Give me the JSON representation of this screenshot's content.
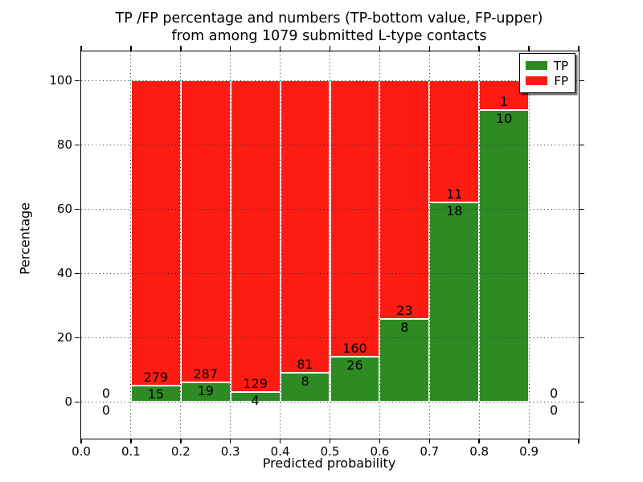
{
  "title": {
    "line1": "TP /FP percentage and numbers (TP-bottom value, FP-upper)",
    "line2": "from among 1079 submitted L-type contacts"
  },
  "chart_data": {
    "type": "bar",
    "stacked": true,
    "title": "TP /FP percentage and numbers (TP-bottom value, FP-upper) from among 1079 submitted L-type contacts",
    "xlabel": "Predicted probability",
    "ylabel": "Percentage",
    "xlim": [
      0.0,
      1.0
    ],
    "ylim": [
      -11.4,
      109.1
    ],
    "grid": "dotted, drawn on top of bars",
    "legend_position": "upper right",
    "x_tick_positions": [
      0.0,
      0.1,
      0.2,
      0.3,
      0.4,
      0.5,
      0.6,
      0.7,
      0.8,
      0.9,
      1.0
    ],
    "x_tick_labels": [
      "0.0",
      "0.1",
      "0.2",
      "0.3",
      "0.4",
      "0.5",
      "0.6",
      "0.7",
      "0.8",
      "0.9",
      ""
    ],
    "y_tick_positions": [
      0,
      20,
      40,
      60,
      80,
      100
    ],
    "y_tick_labels": [
      "0",
      "20",
      "40",
      "60",
      "80",
      "100"
    ],
    "v_grid_positions": [
      0.1,
      0.2,
      0.3,
      0.4,
      0.5,
      0.6,
      0.7,
      0.8,
      0.9
    ],
    "legend": [
      {
        "label": "TP",
        "color": "#2e8b24"
      },
      {
        "label": "FP",
        "color": "#fd1b12"
      }
    ],
    "series_note": "green TP segment from 0 to tp_pct, red FP segment from tp_pct to 100; labels hug the TP/FP boundary (TP below, FP above)",
    "bins": [
      {
        "range": [
          0.0,
          0.1
        ],
        "tp": 0,
        "fp": 0,
        "tp_label": "0",
        "fp_label": "0",
        "tp_pct": 0,
        "top_pct": 0
      },
      {
        "range": [
          0.1,
          0.2
        ],
        "tp": 15,
        "fp": 279,
        "tp_label": "15",
        "fp_label": "279",
        "tp_pct": 5.1,
        "top_pct": 100
      },
      {
        "range": [
          0.2,
          0.3
        ],
        "tp": 19,
        "fp": 287,
        "tp_label": "19",
        "fp_label": "287",
        "tp_pct": 6.21,
        "top_pct": 100
      },
      {
        "range": [
          0.3,
          0.4
        ],
        "tp": 4,
        "fp": 129,
        "tp_label": "4",
        "fp_label": "129",
        "tp_pct": 3.01,
        "top_pct": 100
      },
      {
        "range": [
          0.4,
          0.5
        ],
        "tp": 8,
        "fp": 81,
        "tp_label": "8",
        "fp_label": "81",
        "tp_pct": 8.99,
        "top_pct": 100
      },
      {
        "range": [
          0.5,
          0.6
        ],
        "tp": 26,
        "fp": 160,
        "tp_label": "26",
        "fp_label": "160",
        "tp_pct": 13.98,
        "top_pct": 100
      },
      {
        "range": [
          0.6,
          0.7
        ],
        "tp": 8,
        "fp": 23,
        "tp_label": "8",
        "fp_label": "23",
        "tp_pct": 25.81,
        "top_pct": 100
      },
      {
        "range": [
          0.7,
          0.8
        ],
        "tp": 18,
        "fp": 11,
        "tp_label": "18",
        "fp_label": "11",
        "tp_pct": 62.07,
        "top_pct": 100
      },
      {
        "range": [
          0.8,
          0.9
        ],
        "tp": 10,
        "fp": 1,
        "tp_label": "10",
        "fp_label": "1",
        "tp_pct": 90.91,
        "top_pct": 100
      },
      {
        "range": [
          0.9,
          1.0
        ],
        "tp": 0,
        "fp": 0,
        "tp_label": "0",
        "fp_label": "0",
        "tp_pct": 0,
        "top_pct": 0
      }
    ]
  },
  "colors": {
    "tp_green": "#2e8b24",
    "fp_red": "#fd1b12",
    "grid": "#2b2b2b",
    "axis": "#000000",
    "background": "#ffffff"
  }
}
